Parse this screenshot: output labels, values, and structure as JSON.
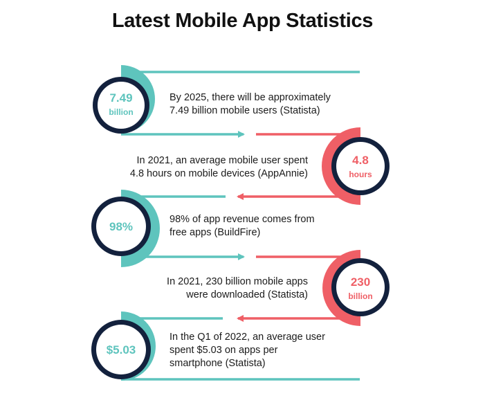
{
  "title": "Latest Mobile App Statistics",
  "colors": {
    "teal": "#5ec4bd",
    "coral": "#ef5f66",
    "navy": "#13213d",
    "text": "#1b1b1b"
  },
  "stats": [
    {
      "value": "7.49",
      "unit": "billion",
      "text_lines": [
        "By 2025, there will be approximately",
        "7.49 billion mobile users (Statista)"
      ],
      "color": "teal",
      "side": "left"
    },
    {
      "value": "4.8",
      "unit": "hours",
      "text_lines": [
        "In 2021, an average mobile user spent",
        "4.8 hours on mobile devices (AppAnnie)"
      ],
      "color": "coral",
      "side": "right"
    },
    {
      "value": "98%",
      "unit": "",
      "text_lines": [
        "98% of app revenue comes from",
        "free apps (BuildFire)"
      ],
      "color": "teal",
      "side": "left"
    },
    {
      "value": "230",
      "unit": "billion",
      "text_lines": [
        "In 2021, 230 billion mobile apps",
        "were downloaded (Statista)"
      ],
      "color": "coral",
      "side": "right"
    },
    {
      "value": "$5.03",
      "unit": "",
      "text_lines": [
        "In the Q1 of 2022, an average user",
        "spent $5.03 on apps per",
        "smartphone (Statista)"
      ],
      "color": "teal",
      "side": "left"
    }
  ]
}
